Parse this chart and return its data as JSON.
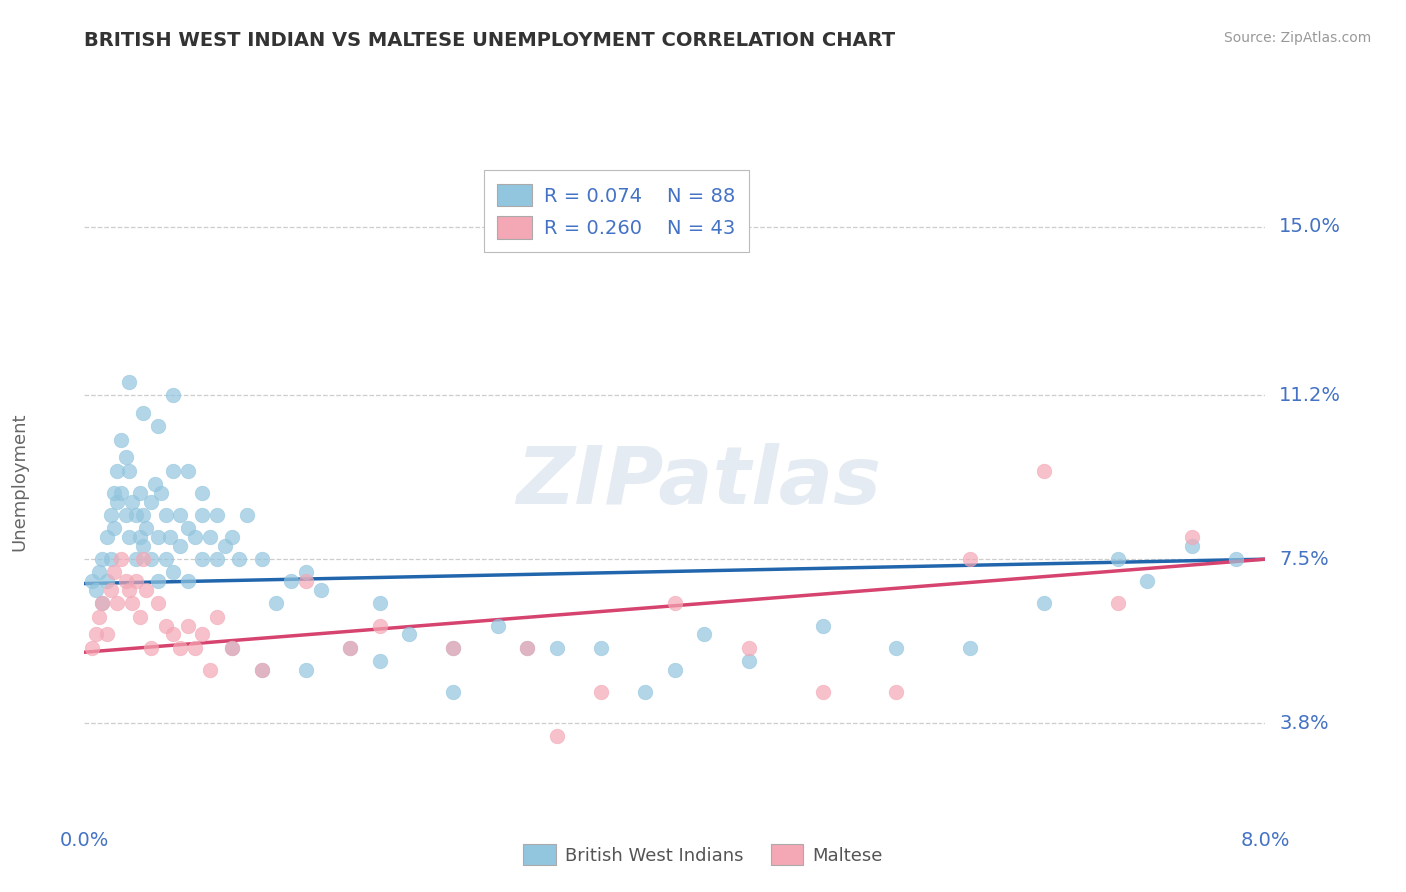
{
  "title": "BRITISH WEST INDIAN VS MALTESE UNEMPLOYMENT CORRELATION CHART",
  "source": "Source: ZipAtlas.com",
  "ylabel": "Unemployment",
  "xlim": [
    0.0,
    8.0
  ],
  "ylim": [
    2.0,
    16.5
  ],
  "y_tick_vals": [
    3.8,
    7.5,
    11.2,
    15.0
  ],
  "y_tick_labels": [
    "3.8%",
    "7.5%",
    "11.2%",
    "15.0%"
  ],
  "x_tick_labels": [
    "0.0%",
    "8.0%"
  ],
  "legend_r1": "R = 0.074",
  "legend_n1": "N = 88",
  "legend_r2": "R = 0.260",
  "legend_n2": "N = 43",
  "color_blue": "#92c5de",
  "color_pink": "#f4a7b5",
  "color_trend_blue": "#2166ac",
  "color_trend_pink": "#d6436e",
  "watermark": "ZIPatlas",
  "bg_color": "#ffffff",
  "grid_color": "#c8c8c8",
  "label1": "British West Indians",
  "label2": "Maltese",
  "blue_trend_x": [
    0.0,
    8.0
  ],
  "blue_trend_y": [
    6.95,
    7.5
  ],
  "pink_trend_x": [
    0.0,
    8.0
  ],
  "pink_trend_y": [
    5.4,
    7.5
  ],
  "blue_scatter_x": [
    0.05,
    0.08,
    0.1,
    0.12,
    0.12,
    0.15,
    0.15,
    0.18,
    0.18,
    0.2,
    0.2,
    0.22,
    0.22,
    0.25,
    0.25,
    0.28,
    0.28,
    0.3,
    0.3,
    0.32,
    0.35,
    0.35,
    0.38,
    0.38,
    0.4,
    0.4,
    0.42,
    0.45,
    0.45,
    0.48,
    0.5,
    0.5,
    0.52,
    0.55,
    0.55,
    0.58,
    0.6,
    0.6,
    0.65,
    0.65,
    0.7,
    0.7,
    0.75,
    0.8,
    0.8,
    0.85,
    0.9,
    0.95,
    1.0,
    1.05,
    1.1,
    1.2,
    1.3,
    1.4,
    1.5,
    1.6,
    1.8,
    2.0,
    2.2,
    2.5,
    2.8,
    3.0,
    3.5,
    3.8,
    4.2,
    4.5,
    5.0,
    5.5,
    6.0,
    6.5,
    7.0,
    7.2,
    7.5,
    7.8,
    0.3,
    0.4,
    0.5,
    0.6,
    0.7,
    0.8,
    0.9,
    1.0,
    1.2,
    1.5,
    2.0,
    2.5,
    3.2,
    4.0
  ],
  "blue_scatter_y": [
    7.0,
    6.8,
    7.2,
    6.5,
    7.5,
    8.0,
    7.0,
    8.5,
    7.5,
    9.0,
    8.2,
    9.5,
    8.8,
    10.2,
    9.0,
    9.8,
    8.5,
    9.5,
    8.0,
    8.8,
    8.5,
    7.5,
    9.0,
    8.0,
    8.5,
    7.8,
    8.2,
    8.8,
    7.5,
    9.2,
    8.0,
    7.0,
    9.0,
    8.5,
    7.5,
    8.0,
    9.5,
    7.2,
    8.5,
    7.8,
    8.2,
    7.0,
    8.0,
    8.5,
    7.5,
    8.0,
    7.5,
    7.8,
    8.0,
    7.5,
    8.5,
    7.5,
    6.5,
    7.0,
    7.2,
    6.8,
    5.5,
    6.5,
    5.8,
    5.5,
    6.0,
    5.5,
    5.5,
    4.5,
    5.8,
    5.2,
    6.0,
    5.5,
    5.5,
    6.5,
    7.5,
    7.0,
    7.8,
    7.5,
    11.5,
    10.8,
    10.5,
    11.2,
    9.5,
    9.0,
    8.5,
    5.5,
    5.0,
    5.0,
    5.2,
    4.5,
    5.5,
    5.0
  ],
  "pink_scatter_x": [
    0.05,
    0.08,
    0.1,
    0.12,
    0.15,
    0.18,
    0.2,
    0.22,
    0.25,
    0.28,
    0.3,
    0.32,
    0.35,
    0.38,
    0.4,
    0.42,
    0.45,
    0.5,
    0.55,
    0.6,
    0.65,
    0.7,
    0.75,
    0.8,
    0.85,
    0.9,
    1.0,
    1.2,
    1.5,
    1.8,
    2.0,
    2.5,
    3.0,
    3.5,
    4.0,
    4.5,
    5.0,
    5.5,
    6.0,
    6.5,
    7.0,
    7.5,
    3.2
  ],
  "pink_scatter_y": [
    5.5,
    5.8,
    6.2,
    6.5,
    5.8,
    6.8,
    7.2,
    6.5,
    7.5,
    7.0,
    6.8,
    6.5,
    7.0,
    6.2,
    7.5,
    6.8,
    5.5,
    6.5,
    6.0,
    5.8,
    5.5,
    6.0,
    5.5,
    5.8,
    5.0,
    6.2,
    5.5,
    5.0,
    7.0,
    5.5,
    6.0,
    5.5,
    5.5,
    4.5,
    6.5,
    5.5,
    4.5,
    4.5,
    7.5,
    9.5,
    6.5,
    8.0,
    3.5
  ]
}
